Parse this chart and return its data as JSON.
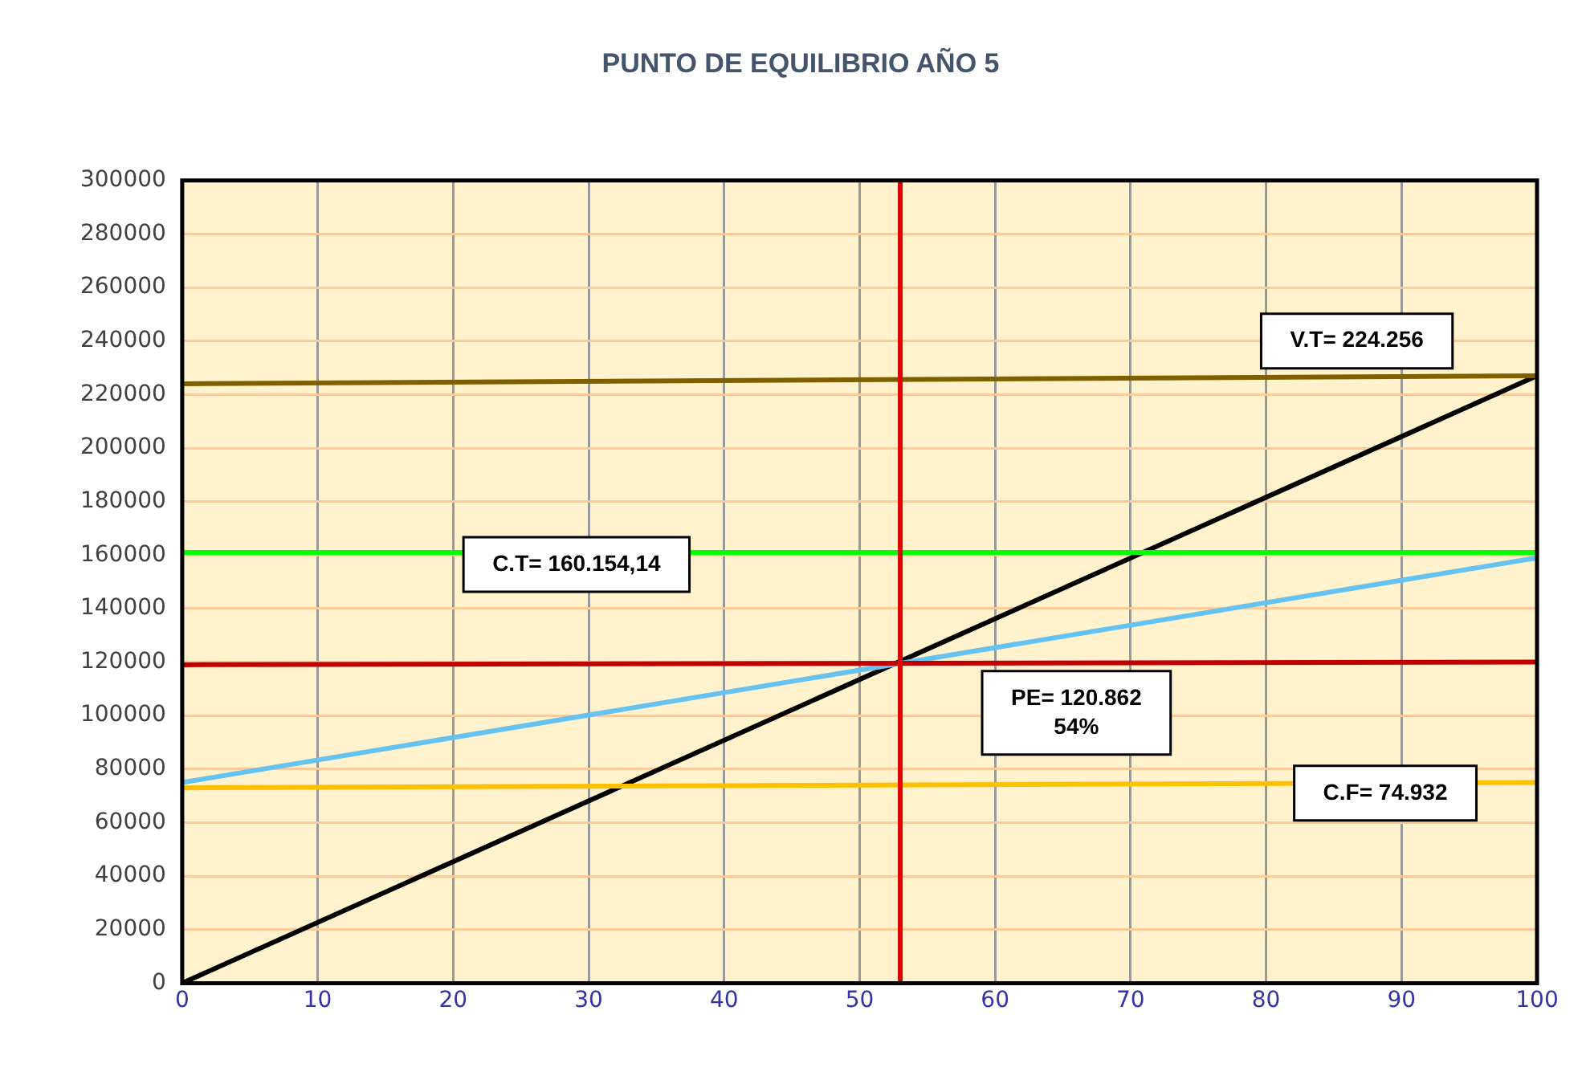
{
  "chart_data": {
    "type": "line",
    "title": "PUNTO DE EQUILIBRIO AÑO 5",
    "x": [
      0,
      100
    ],
    "xlim": [
      0,
      100
    ],
    "xticks": [
      0,
      10,
      20,
      30,
      40,
      50,
      60,
      70,
      80,
      90,
      100
    ],
    "ylim": [
      0,
      300000
    ],
    "yticks": [
      0,
      20000,
      40000,
      60000,
      80000,
      100000,
      120000,
      140000,
      160000,
      180000,
      200000,
      220000,
      240000,
      260000,
      280000,
      300000
    ],
    "grid": true,
    "legend": false,
    "marker": "none",
    "line_style": "solid",
    "series": [
      {
        "color": "#7f6000",
        "values": [
          224000,
          227000
        ]
      },
      {
        "color": "#00ff00",
        "values": [
          161000,
          161000
        ]
      },
      {
        "color": "#c00000",
        "values": [
          119000,
          120000
        ]
      },
      {
        "color": "#66c2f0",
        "values": [
          75000,
          159000
        ]
      },
      {
        "color": "#ffc000",
        "values": [
          73000,
          75000
        ]
      },
      {
        "color": "#000000",
        "values": [
          0,
          227000
        ]
      }
    ],
    "ref_lines": [
      {
        "axis": "x",
        "value": 53,
        "color": "#e00000"
      }
    ],
    "annotations": [
      "V.T= 224.256",
      "C.T= 160.154,14",
      "PE= 120.862\n54%",
      "C.F= 74.932"
    ]
  }
}
